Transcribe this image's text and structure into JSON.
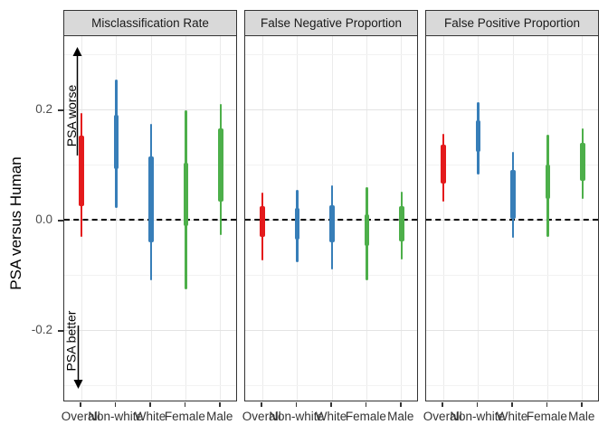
{
  "figure": {
    "y_axis_title": "PSA versus Human",
    "annotations": {
      "worse_label": "PSA worse",
      "better_label": "PSA better"
    }
  },
  "chart_data": {
    "type": "interval",
    "title": "",
    "ylabel": "PSA versus Human",
    "xlabel": "",
    "ylim": [
      -0.333,
      0.333
    ],
    "reference_line": 0,
    "grid": "on",
    "y_ticks": [
      {
        "label": "0.2",
        "value": 0.2
      },
      {
        "label": "0.0",
        "value": 0.0
      },
      {
        "label": "-0.2",
        "value": -0.2
      }
    ],
    "y_minor_gridlines": [
      0.3,
      0.1,
      -0.1,
      -0.3
    ],
    "categories": [
      "Overall",
      "Non-white",
      "White",
      "Female",
      "Male"
    ],
    "category_colors": [
      "#E41A1C",
      "#377EB8",
      "#377EB8",
      "#4DAF4A",
      "#4DAF4A"
    ],
    "facets": [
      {
        "name": "Misclassification Rate",
        "intervals": [
          {
            "category": "Overall",
            "color": "#E41A1C",
            "outer": [
              -0.031,
              0.193
            ],
            "inner": [
              0.025,
              0.152
            ]
          },
          {
            "category": "Non-white",
            "color": "#377EB8",
            "outer": [
              0.021,
              0.254
            ],
            "inner": [
              0.092,
              0.19
            ]
          },
          {
            "category": "White",
            "color": "#377EB8",
            "outer": [
              -0.11,
              0.174
            ],
            "inner": [
              -0.041,
              0.115
            ]
          },
          {
            "category": "Female",
            "color": "#4DAF4A",
            "outer": [
              -0.126,
              0.198
            ],
            "inner": [
              -0.011,
              0.103
            ]
          },
          {
            "category": "Male",
            "color": "#4DAF4A",
            "outer": [
              -0.028,
              0.21
            ],
            "inner": [
              0.033,
              0.166
            ]
          }
        ]
      },
      {
        "name": "False Negative Proportion",
        "intervals": [
          {
            "category": "Overall",
            "color": "#E41A1C",
            "outer": [
              -0.074,
              0.049
            ],
            "inner": [
              -0.031,
              0.025
            ]
          },
          {
            "category": "Non-white",
            "color": "#377EB8",
            "outer": [
              -0.077,
              0.054
            ],
            "inner": [
              -0.036,
              0.021
            ]
          },
          {
            "category": "White",
            "color": "#377EB8",
            "outer": [
              -0.09,
              0.062
            ],
            "inner": [
              -0.041,
              0.026
            ]
          },
          {
            "category": "Female",
            "color": "#4DAF4A",
            "outer": [
              -0.11,
              0.059
            ],
            "inner": [
              -0.048,
              0.01
            ]
          },
          {
            "category": "Male",
            "color": "#4DAF4A",
            "outer": [
              -0.072,
              0.051
            ],
            "inner": [
              -0.039,
              0.025
            ]
          }
        ]
      },
      {
        "name": "False Positive Proportion",
        "intervals": [
          {
            "category": "Overall",
            "color": "#E41A1C",
            "outer": [
              0.033,
              0.156
            ],
            "inner": [
              0.066,
              0.136
            ]
          },
          {
            "category": "Non-white",
            "color": "#377EB8",
            "outer": [
              0.082,
              0.213
            ],
            "inner": [
              0.123,
              0.18
            ]
          },
          {
            "category": "White",
            "color": "#377EB8",
            "outer": [
              -0.033,
              0.123
            ],
            "inner": [
              0.002,
              0.09
            ]
          },
          {
            "category": "Female",
            "color": "#4DAF4A",
            "outer": [
              -0.031,
              0.154
            ],
            "inner": [
              0.038,
              0.1
            ]
          },
          {
            "category": "Male",
            "color": "#4DAF4A",
            "outer": [
              0.038,
              0.166
            ],
            "inner": [
              0.07,
              0.139
            ]
          }
        ]
      }
    ]
  }
}
